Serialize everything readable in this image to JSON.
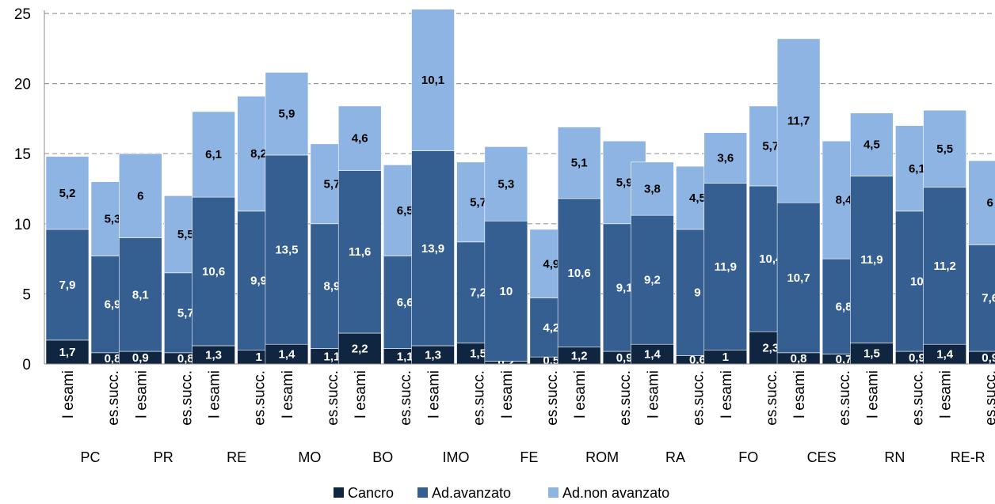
{
  "chart_data": {
    "type": "bar",
    "stacked": true,
    "ylim": [
      0,
      25
    ],
    "y_ticks": [
      0,
      5,
      10,
      15,
      20,
      25
    ],
    "grid": true,
    "legend_position": "bottom",
    "groups": [
      "PC",
      "PR",
      "RE",
      "MO",
      "BO",
      "IMO",
      "FE",
      "ROM",
      "RA",
      "FO",
      "CES",
      "RN",
      "RE-R"
    ],
    "bar_types": [
      "I esami",
      "es.succ."
    ],
    "categories": [
      "PC I esami",
      "PC es.succ.",
      "PR I esami",
      "PR es.succ.",
      "RE I esami",
      "RE es.succ.",
      "MO I esami",
      "MO es.succ.",
      "BO I esami",
      "BO es.succ.",
      "IMO I esami",
      "IMO es.succ.",
      "FE I esami",
      "FE es.succ.",
      "ROM I esami",
      "ROM es.succ.",
      "RA I esami",
      "RA es.succ.",
      "FO I esami",
      "FO es.succ.",
      "CES I esami",
      "CES es.succ.",
      "RN I esami",
      "RN es.succ.",
      "RE-R I esami",
      "RE-R es.succ."
    ],
    "series": [
      {
        "name": "Cancro",
        "color": "#10253f",
        "values": [
          1.7,
          0.8,
          0.9,
          0.8,
          1.3,
          1,
          1.4,
          1.1,
          2.2,
          1.1,
          1.3,
          1.5,
          0.2,
          0.5,
          1.2,
          0.9,
          1.4,
          0.6,
          1,
          2.3,
          0.8,
          0.7,
          1.5,
          0.9,
          1.4,
          0.9
        ]
      },
      {
        "name": "Ad.avanzato",
        "color": "#355e91",
        "values": [
          7.9,
          6.9,
          8.1,
          5.7,
          10.6,
          9.9,
          13.5,
          8.9,
          11.6,
          6.6,
          13.9,
          7.2,
          10,
          4.2,
          10.6,
          9.1,
          9.2,
          9,
          11.9,
          10.4,
          10.7,
          6.8,
          11.9,
          10,
          11.2,
          7.6
        ]
      },
      {
        "name": "Ad.non avanzato",
        "color": "#8db4e2",
        "values": [
          5.2,
          5.3,
          6,
          5.5,
          6.1,
          8.2,
          5.9,
          5.7,
          4.6,
          6.5,
          10.1,
          5.7,
          5.3,
          4.9,
          5.1,
          5.9,
          3.8,
          4.5,
          3.6,
          5.7,
          11.7,
          8.4,
          4.5,
          6.1,
          5.5,
          6
        ]
      }
    ],
    "labels": [
      [
        "1,7",
        "0,8",
        "0,9",
        "0,8",
        "1,3",
        "1",
        "1,4",
        "1,1",
        "2,2",
        "1,1",
        "1,3",
        "1,5",
        "0,2",
        "0,5",
        "1,2",
        "0,9",
        "1,4",
        "0,6",
        "1",
        "2,3",
        "0,8",
        "0,7",
        "1,5",
        "0,9",
        "1,4",
        "0,9"
      ],
      [
        "7,9",
        "6,9",
        "8,1",
        "5,7",
        "10,6",
        "9,9",
        "13,5",
        "8,9",
        "11,6",
        "6,6",
        "13,9",
        "7,2",
        "10",
        "4,2",
        "10,6",
        "9,1",
        "9,2",
        "9",
        "11,9",
        "10,4",
        "10,7",
        "6,8",
        "11,9",
        "10",
        "11,2",
        "7,6"
      ],
      [
        "5,2",
        "5,3",
        "6",
        "5,5",
        "6,1",
        "8,2",
        "5,9",
        "5,7",
        "4,6",
        "6,5",
        "10,1",
        "5,7",
        "5,3",
        "4,9",
        "5,1",
        "5,9",
        "3,8",
        "4,5",
        "3,6",
        "5,7",
        "11,7",
        "8,4",
        "4,5",
        "6,1",
        "5,5",
        "6"
      ]
    ]
  }
}
